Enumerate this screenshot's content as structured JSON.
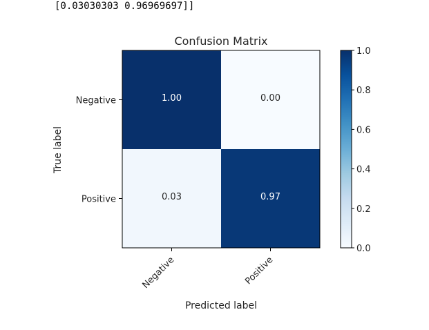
{
  "console": {
    "output_line": "[0.03030303 0.96969697]]"
  },
  "chart_data": {
    "type": "heatmap",
    "title": "Confusion Matrix",
    "xlabel": "Predicted label",
    "ylabel": "True label",
    "x_categories": [
      "Negative",
      "Positive"
    ],
    "y_categories": [
      "Negative",
      "Positive"
    ],
    "values": [
      [
        1.0,
        0.0
      ],
      [
        0.03,
        0.97
      ]
    ],
    "cell_labels": [
      [
        "1.00",
        "0.00"
      ],
      [
        "0.03",
        "0.97"
      ]
    ],
    "colormap": "Blues",
    "colorbar": {
      "range": [
        0.0,
        1.0
      ],
      "ticks": [
        "0.0",
        "0.2",
        "0.4",
        "0.6",
        "0.8",
        "1.0"
      ]
    },
    "colors": {
      "low": "#f7fbff",
      "high": "#08306b"
    }
  }
}
